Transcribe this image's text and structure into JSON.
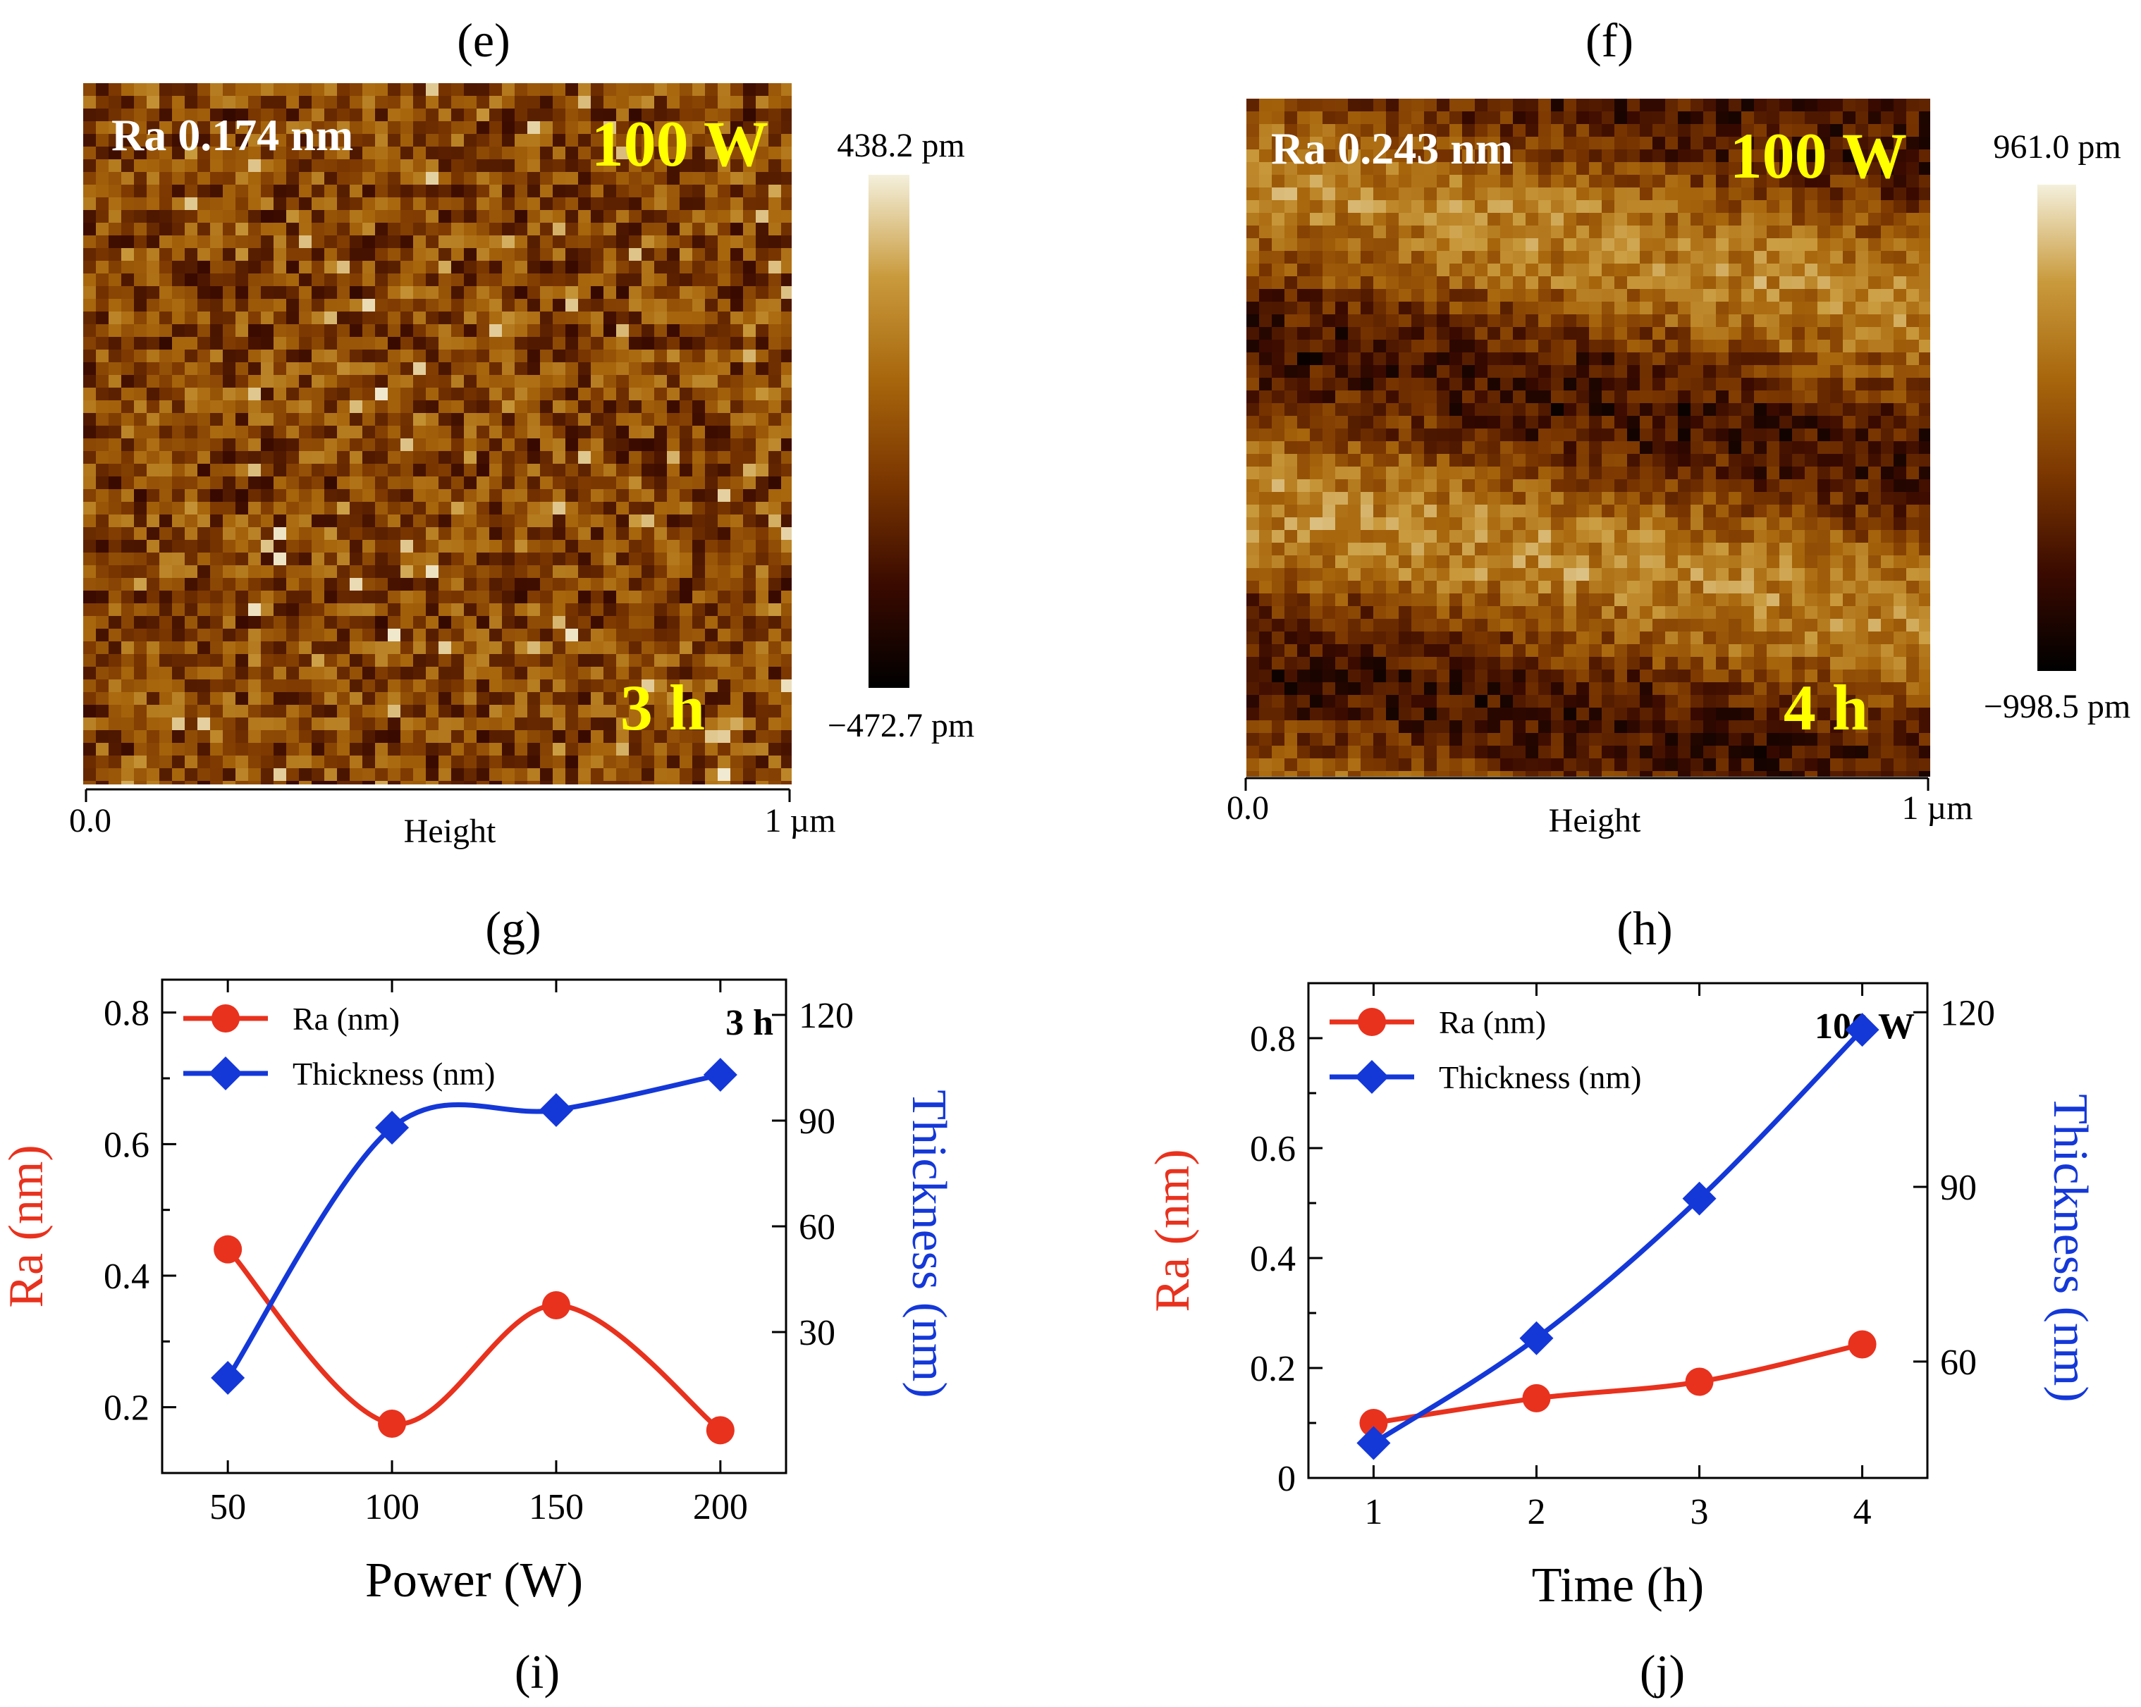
{
  "panels": {
    "e": {
      "label": "(e)",
      "ra": "Ra 0.174 nm",
      "power": "100 W",
      "time": "3 h",
      "scale_max": "438.2 pm",
      "scale_min": "−472.7 pm",
      "x_start": "0.0",
      "x_end": "1 µm",
      "x_caption": "Height",
      "image_style": "fine-grained",
      "colormap": [
        "#000000",
        "#3a0a00",
        "#7a3600",
        "#a8660c",
        "#c99a3c",
        "#f4f0dc"
      ]
    },
    "f": {
      "label": "(f)",
      "ra": "Ra 0.243 nm",
      "power": "100 W",
      "time": "4 h",
      "scale_max": "961.0 pm",
      "scale_min": "−998.5 pm",
      "x_start": "0.0",
      "x_end": "1 µm",
      "x_caption": "Height",
      "image_style": "diagonal-stripes",
      "colormap": [
        "#000000",
        "#3a0a00",
        "#7a3600",
        "#a8660c",
        "#c99a3c",
        "#f4f0dc"
      ]
    },
    "g": {
      "label": "(g)"
    },
    "h": {
      "label": "(h)"
    },
    "i": {
      "label": "(i)"
    },
    "j": {
      "label": "(j)"
    }
  },
  "colors": {
    "ra": "#e8321e",
    "thickness": "#1438d8",
    "label_yellow": "#ffff00",
    "label_white": "#ffffff"
  },
  "chart_data": [
    {
      "type": "line",
      "panel": "g",
      "annotation": "3 h",
      "xlabel": "Power (W)",
      "ylabel_left": "Ra (nm)",
      "ylabel_right": "Thickness (nm)",
      "x": [
        50,
        100,
        150,
        200
      ],
      "xlim": [
        30,
        220
      ],
      "xticks": [
        50,
        100,
        150,
        200
      ],
      "ylim_left": [
        0.1,
        0.85
      ],
      "yticks_left": [
        0.2,
        0.4,
        0.6,
        0.8
      ],
      "yticks_left_labels": [
        "0.2",
        "0.4",
        "0.6",
        "0.8"
      ],
      "ylim_right": [
        -10,
        130
      ],
      "yticks_right": [
        30,
        60,
        90,
        120
      ],
      "series": [
        {
          "name": "Ra (nm)",
          "axis": "left",
          "marker": "circle",
          "values": [
            0.44,
            0.175,
            0.355,
            0.165
          ]
        },
        {
          "name": "Thickness (nm)",
          "axis": "right",
          "marker": "diamond",
          "values": [
            17,
            88,
            93,
            103
          ]
        }
      ],
      "legend_position": "top-left",
      "grid": false,
      "smooth": true
    },
    {
      "type": "line",
      "panel": "h",
      "annotation": "100 W",
      "xlabel": "Time (h)",
      "ylabel_left": "Ra (nm)",
      "ylabel_right": "Thickness (nm)",
      "x": [
        1,
        2,
        3,
        4
      ],
      "xlim": [
        0.6,
        4.4
      ],
      "xticks": [
        1,
        2,
        3,
        4
      ],
      "ylim_left": [
        0,
        0.9
      ],
      "yticks_left": [
        0,
        0.2,
        0.4,
        0.6,
        0.8
      ],
      "yticks_left_labels": [
        "0",
        "0.2",
        "0.4",
        "0.6",
        "0.8"
      ],
      "ylim_right": [
        40,
        125
      ],
      "yticks_right": [
        60,
        90,
        120
      ],
      "series": [
        {
          "name": "Ra (nm)",
          "axis": "left",
          "marker": "circle",
          "values": [
            0.1,
            0.145,
            0.175,
            0.243
          ]
        },
        {
          "name": "Thickness (nm)",
          "axis": "right",
          "marker": "diamond",
          "values": [
            46,
            64,
            88,
            117
          ]
        }
      ],
      "legend_position": "top-left",
      "grid": false,
      "smooth": true
    }
  ]
}
